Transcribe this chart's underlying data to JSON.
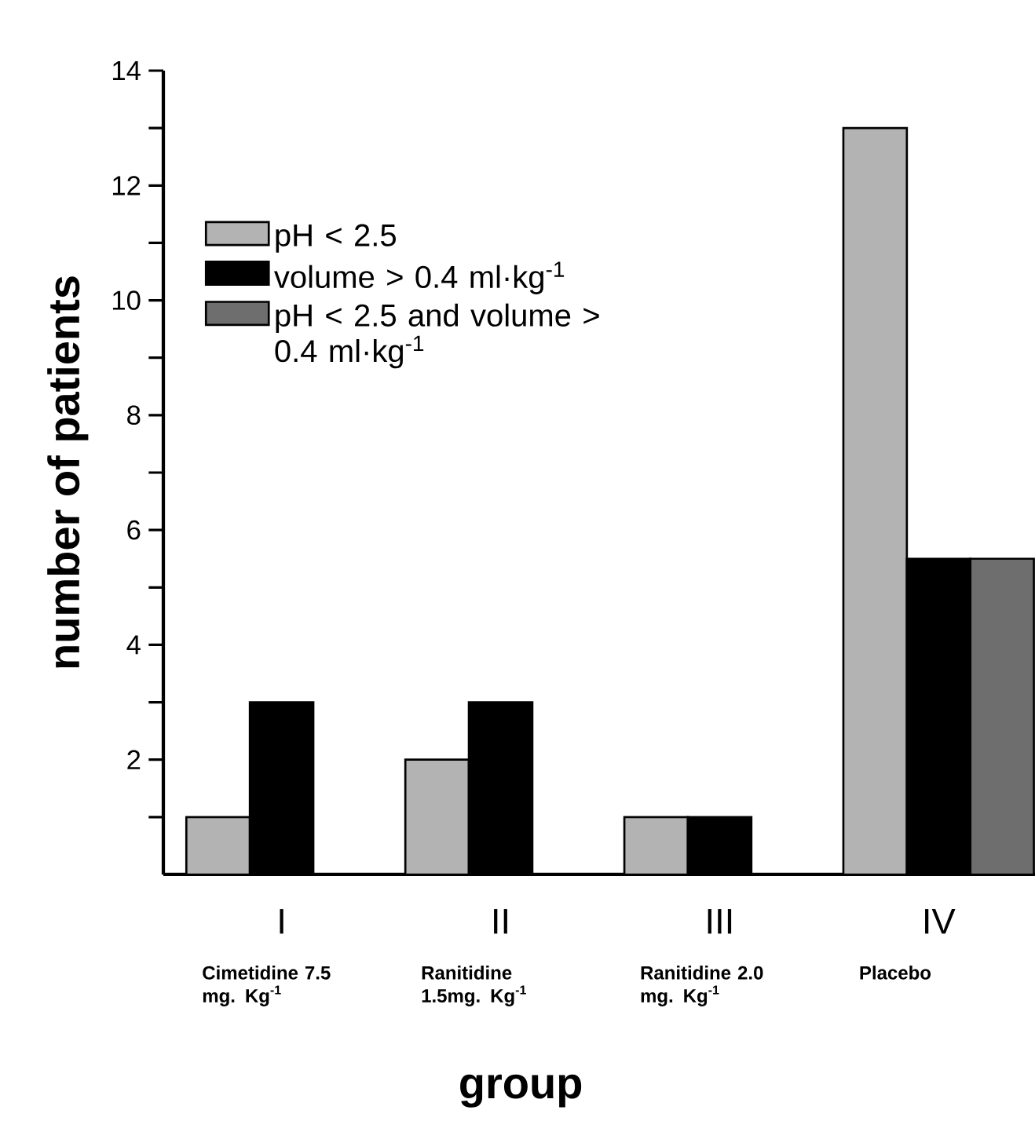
{
  "chart_data": {
    "type": "bar",
    "xlabel": "group",
    "ylabel": "number of patients",
    "categories": [
      "I",
      "II",
      "III",
      "IV"
    ],
    "series": [
      {
        "name": "pH < 2.5",
        "color": "#b3b3b3",
        "values": [
          1,
          2,
          1,
          13
        ]
      },
      {
        "name": "volume > 0.4 ml·kg$^{-1}$",
        "color": "#000000",
        "values": [
          3,
          3,
          1,
          5.5
        ]
      },
      {
        "name": "pH < 2.5 and volume > 0.4 ml·kg$^{-1}$",
        "color": "#6e6e6e",
        "values": [
          null,
          null,
          null,
          5.5
        ]
      }
    ],
    "ylim": [
      0,
      14
    ],
    "yticks": [
      {
        "value": 1,
        "label": null
      },
      2,
      {
        "value": 3,
        "label": null
      },
      4,
      {
        "value": 5,
        "label": null
      },
      6,
      {
        "value": 7,
        "label": null
      },
      8,
      {
        "value": 9,
        "label": null
      },
      10,
      {
        "value": 11,
        "label": null
      },
      12,
      {
        "value": 13,
        "label": null
      },
      14
    ],
    "annotations": [
      "Cimetidine 7.5 mg. Kg$^{-1}$",
      "Ranitidine 1.5mg. Kg$^{-1}$",
      "Ranitidine 2.0 mg. Kg$^{-1}$",
      "Placebo"
    ],
    "grid": false,
    "legend": "top left"
  }
}
